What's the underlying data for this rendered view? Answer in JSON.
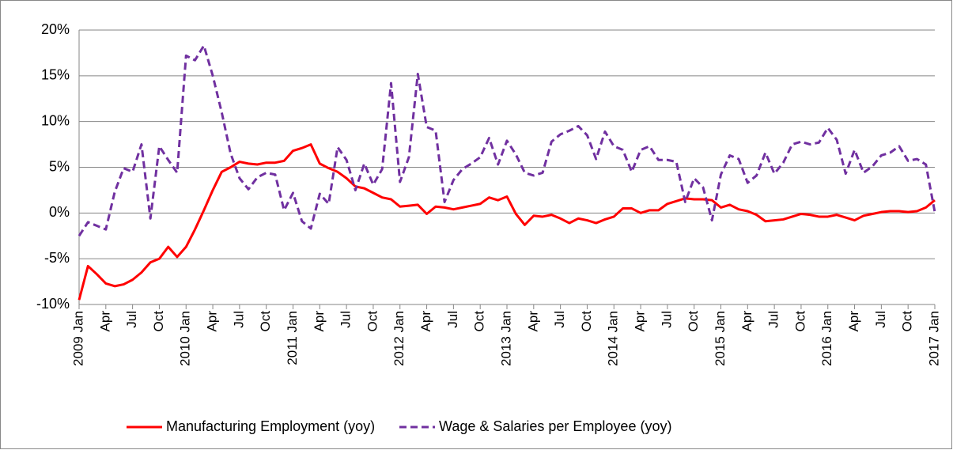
{
  "chart_data": {
    "type": "line",
    "categories": [
      "2009 Jan",
      null,
      null,
      "Apr",
      null,
      null,
      "Jul",
      null,
      null,
      "Oct",
      null,
      null,
      "2010 Jan",
      null,
      null,
      "Apr",
      null,
      null,
      "Jul",
      null,
      null,
      "Oct",
      null,
      null,
      "2011 Jan",
      null,
      null,
      "Apr",
      null,
      null,
      "Jul",
      null,
      null,
      "Oct",
      null,
      null,
      "2012 Jan",
      null,
      null,
      "Apr",
      null,
      null,
      "Jul",
      null,
      null,
      "Oct",
      null,
      null,
      "2013 Jan",
      null,
      null,
      "Apr",
      null,
      null,
      "Jul",
      null,
      null,
      "Oct",
      null,
      null,
      "2014 Jan",
      null,
      null,
      "Apr",
      null,
      null,
      "Jul",
      null,
      null,
      "Oct",
      null,
      null,
      "2015 Jan",
      null,
      null,
      "Apr",
      null,
      null,
      "Jul",
      null,
      null,
      "Oct",
      null,
      null,
      "2016 Jan",
      null,
      null,
      "Apr",
      null,
      null,
      "Jul",
      null,
      null,
      "Oct",
      null,
      null,
      "2017 Jan"
    ],
    "series": [
      {
        "name": "Manufacturing Employment (yoy)",
        "color": "#ff0000",
        "dash": false,
        "values": [
          -9.5,
          -5.8,
          -6.7,
          -7.7,
          -8.0,
          -7.8,
          -7.3,
          -6.5,
          -5.4,
          -5.0,
          -3.7,
          -4.8,
          -3.7,
          -1.8,
          0.3,
          2.5,
          4.5,
          5.0,
          5.6,
          5.4,
          5.3,
          5.5,
          5.5,
          5.7,
          6.8,
          7.1,
          7.5,
          5.4,
          4.9,
          4.5,
          3.8,
          2.9,
          2.7,
          2.2,
          1.7,
          1.5,
          0.7,
          0.8,
          0.9,
          -0.1,
          0.7,
          0.6,
          0.4,
          0.6,
          0.8,
          1.0,
          1.7,
          1.4,
          1.8,
          -0.1,
          -1.3,
          -0.3,
          -0.4,
          -0.2,
          -0.6,
          -1.1,
          -0.6,
          -0.8,
          -1.1,
          -0.7,
          -0.4,
          0.5,
          0.5,
          0.0,
          0.3,
          0.3,
          1.0,
          1.3,
          1.6,
          1.5,
          1.5,
          1.4,
          0.6,
          0.9,
          0.4,
          0.2,
          -0.2,
          -0.9,
          -0.8,
          -0.7,
          -0.4,
          -0.1,
          -0.2,
          -0.4,
          -0.4,
          -0.2,
          -0.5,
          -0.8,
          -0.3,
          -0.1,
          0.1,
          0.2,
          0.2,
          0.1,
          0.2,
          0.6,
          1.4
        ]
      },
      {
        "name": "Wage & Salaries per Employee (yoy)",
        "color": "#7030a0",
        "dash": true,
        "values": [
          -2.5,
          -1.0,
          -1.4,
          -1.8,
          2.3,
          4.9,
          4.5,
          7.5,
          -0.6,
          7.3,
          5.8,
          4.4,
          17.2,
          16.7,
          18.3,
          15.0,
          11.0,
          6.5,
          3.8,
          2.6,
          3.9,
          4.4,
          4.2,
          0.3,
          2.2,
          -0.9,
          -1.7,
          2.1,
          1.0,
          7.2,
          5.8,
          2.5,
          5.4,
          3.1,
          4.8,
          14.2,
          3.4,
          6.1,
          15.2,
          9.4,
          9.0,
          1.2,
          3.6,
          4.8,
          5.4,
          6.1,
          8.2,
          5.3,
          7.9,
          6.4,
          4.4,
          4.1,
          4.4,
          7.8,
          8.6,
          9.0,
          9.5,
          8.5,
          5.9,
          8.9,
          7.3,
          6.9,
          4.5,
          6.9,
          7.3,
          5.8,
          5.8,
          5.6,
          1.2,
          3.8,
          2.8,
          -0.8,
          4.2,
          6.3,
          5.9,
          3.3,
          4.1,
          6.6,
          4.3,
          5.5,
          7.5,
          7.8,
          7.5,
          7.7,
          9.3,
          8.0,
          4.3,
          6.9,
          4.4,
          5.1,
          6.3,
          6.6,
          7.3,
          5.7,
          5.9,
          5.3,
          0.1
        ]
      }
    ],
    "ylim": [
      -10,
      20
    ],
    "yticks": [
      {
        "value": -10,
        "label": "-10%"
      },
      {
        "value": -5,
        "label": "-5%"
      },
      {
        "value": 0,
        "label": "0%"
      },
      {
        "value": 5,
        "label": "5%"
      },
      {
        "value": 10,
        "label": "10%"
      },
      {
        "value": 15,
        "label": "15%"
      },
      {
        "value": 20,
        "label": "20%"
      }
    ],
    "grid": true,
    "legend": "bottom"
  }
}
